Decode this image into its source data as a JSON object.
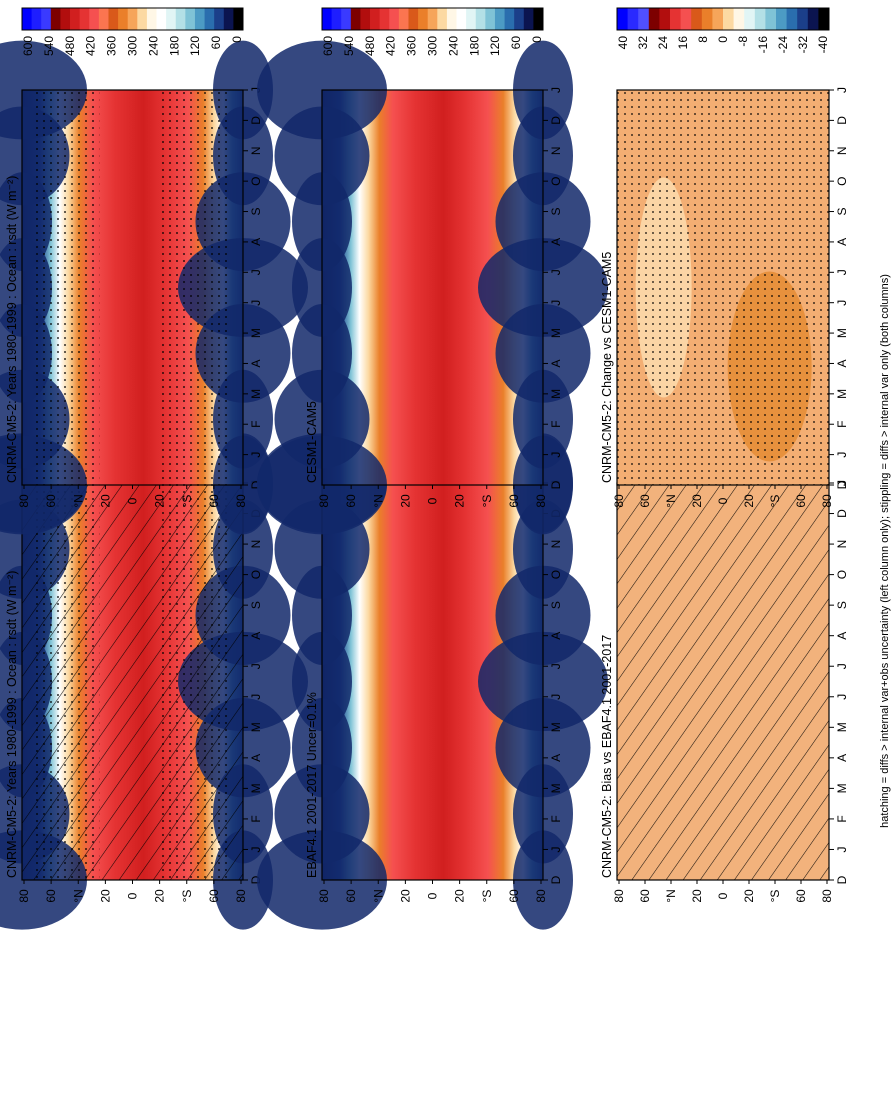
{
  "footnote": "hatching = diffs > internal var+obs uncertainty (left column only); stippling = diffs > internal var only (both columns)",
  "month_labels": [
    "D",
    "J",
    "F",
    "M",
    "A",
    "M",
    "J",
    "J",
    "A",
    "S",
    "O",
    "N",
    "D",
    "J"
  ],
  "lat_labels": [
    "80",
    "60",
    "°N",
    "20",
    "0",
    "20",
    "°S",
    "60",
    "80"
  ],
  "colors": {
    "abs_scale": [
      "#0000ff",
      "#1e1eff",
      "#3a3aff",
      "#7d0000",
      "#b20e0e",
      "#d11f1f",
      "#e53333",
      "#f55050",
      "#fb7550",
      "#d9591a",
      "#ea7f2a",
      "#f6a55a",
      "#fcd9a2",
      "#fff7e6",
      "#ffffff",
      "#e1f5f5",
      "#b3e0e6",
      "#7fc3d6",
      "#4c9bc4",
      "#2a6eae",
      "#1b3f8a",
      "#0b1450",
      "#000000"
    ],
    "diff_scale": [
      "#0000ff",
      "#2a2aff",
      "#5050ff",
      "#7d0000",
      "#b20e0e",
      "#e53333",
      "#f55050",
      "#d9591a",
      "#ea7f2a",
      "#f6a55a",
      "#fcd9a2",
      "#fff7e6",
      "#e1f5f5",
      "#b3e0e6",
      "#7fc3d6",
      "#4c9bc4",
      "#2a6eae",
      "#1b3f8a",
      "#0b1450",
      "#000000"
    ],
    "bias_fill": "#f2b27c",
    "change_fill": "#f3ae73",
    "change_dark": "#e4892f",
    "change_light": "#fbdcae"
  },
  "chart_data": [
    {
      "id": "panel-top-left",
      "type": "heatmap",
      "title": "CNRM-CM5-2: Years 1980-1999 : Ocean : rsdt (W m⁻²)",
      "x": [
        "D",
        "J",
        "F",
        "M",
        "A",
        "M",
        "J",
        "J",
        "A",
        "S",
        "O",
        "N",
        "D",
        "J"
      ],
      "y": [
        "80",
        "60",
        "°N",
        "20",
        "0",
        "20",
        "°S",
        "60",
        "80"
      ],
      "colorbar_ticks": [
        "600",
        "540",
        "480",
        "420",
        "360",
        "300",
        "240",
        "180",
        "120",
        "60",
        "0"
      ],
      "overlay": "hatching+stippling",
      "zlim": [
        0,
        600
      ]
    },
    {
      "id": "panel-top-right",
      "type": "heatmap",
      "title": "CNRM-CM5-2: Years 1980-1999 : Ocean : rsdt (W m⁻²)",
      "x": [
        "D",
        "J",
        "F",
        "M",
        "A",
        "M",
        "J",
        "J",
        "A",
        "S",
        "O",
        "N",
        "D",
        "J"
      ],
      "y": [
        "80",
        "60",
        "°N",
        "20",
        "0",
        "20",
        "°S",
        "60",
        "80"
      ],
      "colorbar_ticks": [
        "600",
        "540",
        "480",
        "420",
        "360",
        "300",
        "240",
        "180",
        "120",
        "60",
        "0"
      ],
      "overlay": "stippling",
      "zlim": [
        0,
        600
      ]
    },
    {
      "id": "panel-mid-left",
      "type": "heatmap",
      "title": "EBAF4.1 2001-2017 Uncer=0.1%",
      "x": [
        "D",
        "J",
        "F",
        "M",
        "A",
        "M",
        "J",
        "J",
        "A",
        "S",
        "O",
        "N",
        "D",
        "J"
      ],
      "y": [
        "80",
        "60",
        "°N",
        "20",
        "0",
        "20",
        "°S",
        "60",
        "80"
      ],
      "colorbar_ticks": [
        "600",
        "540",
        "480",
        "420",
        "360",
        "300",
        "240",
        "180",
        "120",
        "60",
        "0"
      ],
      "zlim": [
        0,
        600
      ]
    },
    {
      "id": "panel-mid-right",
      "type": "heatmap",
      "title": "CESM1-CAM5",
      "x": [
        "D",
        "J",
        "F",
        "M",
        "A",
        "M",
        "J",
        "J",
        "A",
        "S",
        "O",
        "N",
        "D",
        "J"
      ],
      "y": [
        "80",
        "60",
        "°N",
        "20",
        "0",
        "20",
        "°S",
        "60",
        "80"
      ],
      "colorbar_ticks": [
        "600",
        "540",
        "480",
        "420",
        "360",
        "300",
        "240",
        "180",
        "120",
        "60",
        "0"
      ],
      "zlim": [
        0,
        600
      ]
    },
    {
      "id": "panel-bottom-left",
      "type": "heatmap",
      "title": "CNRM-CM5-2: Bias vs EBAF4.1 2001-2017",
      "x": [
        "D",
        "J",
        "F",
        "M",
        "A",
        "M",
        "J",
        "J",
        "A",
        "S",
        "O",
        "N",
        "D",
        "J"
      ],
      "y": [
        "80",
        "60",
        "°N",
        "20",
        "0",
        "20",
        "°S",
        "60",
        "80"
      ],
      "colorbar_ticks": [
        "40",
        "32",
        "24",
        "16",
        "8",
        "0",
        "-8",
        "-16",
        "-24",
        "-32",
        "-40"
      ],
      "overlay": "hatching",
      "zlim": [
        -40,
        40
      ]
    },
    {
      "id": "panel-bottom-right",
      "type": "heatmap",
      "title": "CNRM-CM5-2: Change vs CESM1-CAM5",
      "x": [
        "D",
        "J",
        "F",
        "M",
        "A",
        "M",
        "J",
        "J",
        "A",
        "S",
        "O",
        "N",
        "D",
        "J"
      ],
      "y": [
        "80",
        "60",
        "°N",
        "20",
        "0",
        "20",
        "°S",
        "60",
        "80"
      ],
      "colorbar_ticks": [
        "40",
        "32",
        "24",
        "16",
        "8",
        "0",
        "-8",
        "-16",
        "-24",
        "-32",
        "-40"
      ],
      "overlay": "stippling",
      "zlim": [
        -40,
        40
      ]
    }
  ]
}
